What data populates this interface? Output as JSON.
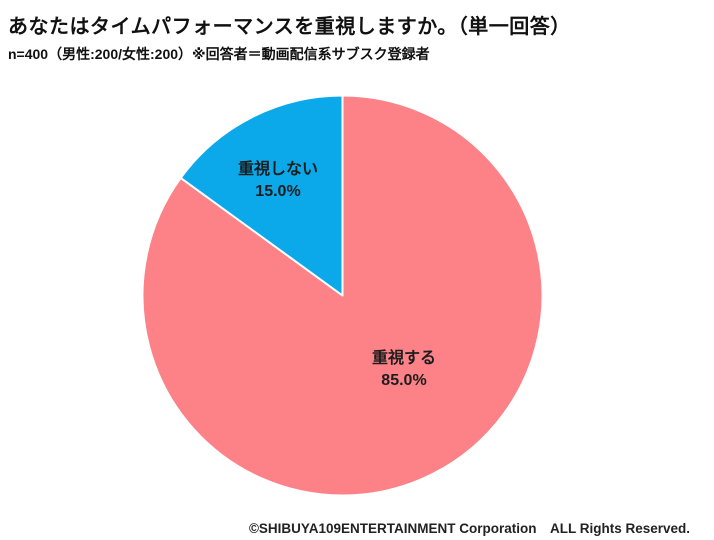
{
  "header": {
    "title": "あなたはタイムパフォーマンスを重視しますか。（単一回答）",
    "subtitle": "n=400（男性:200/女性:200）※回答者＝動画配信系サブスク登録者"
  },
  "footer": {
    "copyright": "©SHIBUYA109ENTERTAINMENT Corporation　ALL Rights Reserved."
  },
  "chart_data": {
    "type": "pie",
    "title": "あなたはタイムパフォーマンスを重視しますか。（単一回答）",
    "sample_note": "n=400（男性:200/女性:200）※回答者＝動画配信系サブスク登録者",
    "categories": [
      "重視する",
      "重視しない"
    ],
    "values": [
      85.0,
      15.0
    ],
    "unit": "%",
    "colors": [
      "#FC8287",
      "#0BA9E9"
    ],
    "slice_border_color": "#FFFFFF",
    "start_angle_deg": -90,
    "direction": "clockwise",
    "legend": "none",
    "labels": [
      {
        "text": "重視する",
        "pct": "85.0%"
      },
      {
        "text": "重視しない",
        "pct": "15.0%"
      }
    ]
  }
}
